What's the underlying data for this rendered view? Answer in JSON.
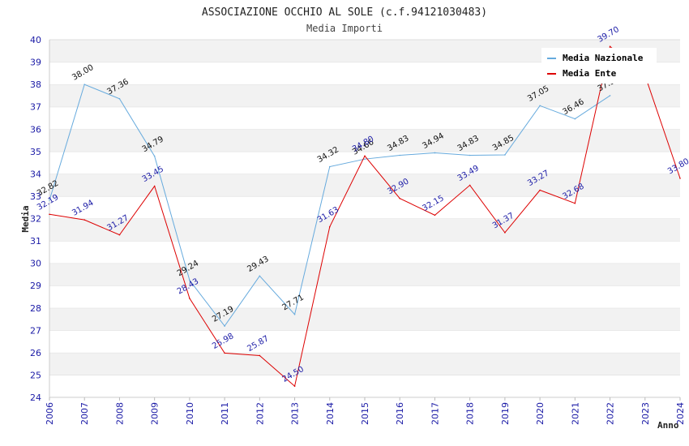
{
  "chart_data": {
    "type": "line",
    "title": "ASSOCIAZIONE OCCHIO AL SOLE (c.f.94121030483)",
    "subtitle": "Media Importi",
    "xlabel": "Anno",
    "ylabel": "Media",
    "ylim": [
      24,
      40
    ],
    "yticks": [
      "24",
      "25",
      "26",
      "27",
      "28",
      "29",
      "30",
      "31",
      "32",
      "33",
      "34",
      "35",
      "36",
      "37",
      "38",
      "39",
      "40"
    ],
    "x": [
      "2006",
      "2007",
      "2008",
      "2009",
      "2010",
      "2011",
      "2012",
      "2013",
      "2014",
      "2015",
      "2016",
      "2017",
      "2018",
      "2019",
      "2020",
      "2021",
      "2022",
      "2023",
      "2024"
    ],
    "grid": true,
    "legend_position": "top-right",
    "series": [
      {
        "name": "Media Nazionale",
        "color": "#66aadd",
        "values": [
          32.82,
          38.0,
          37.36,
          34.79,
          29.24,
          27.19,
          29.43,
          27.71,
          34.32,
          34.66,
          34.83,
          34.94,
          34.83,
          34.85,
          37.05,
          36.46,
          37.5,
          null,
          null
        ],
        "labels": [
          "32.82",
          "38.00",
          "37.36",
          "34.79",
          "29.24",
          "27.19",
          "29.43",
          "27.71",
          "34.32",
          "34.66",
          "34.83",
          "34.94",
          "34.83",
          "34.85",
          "37.05",
          "36.46",
          "37.5",
          "",
          ""
        ]
      },
      {
        "name": "Media Ente",
        "color": "#dd0000",
        "values": [
          32.19,
          31.94,
          31.27,
          33.45,
          28.43,
          25.98,
          25.87,
          24.5,
          31.63,
          34.8,
          32.9,
          32.15,
          33.49,
          31.37,
          33.27,
          32.68,
          39.7,
          38.4,
          33.8
        ],
        "labels": [
          "32.19",
          "31.94",
          "31.27",
          "33.45",
          "28.43",
          "25.98",
          "25.87",
          "24.50",
          "31.63",
          "34.80",
          "32.90",
          "32.15",
          "33.49",
          "31.37",
          "33.27",
          "32.68",
          "39.70",
          "",
          "33.80"
        ]
      }
    ]
  }
}
